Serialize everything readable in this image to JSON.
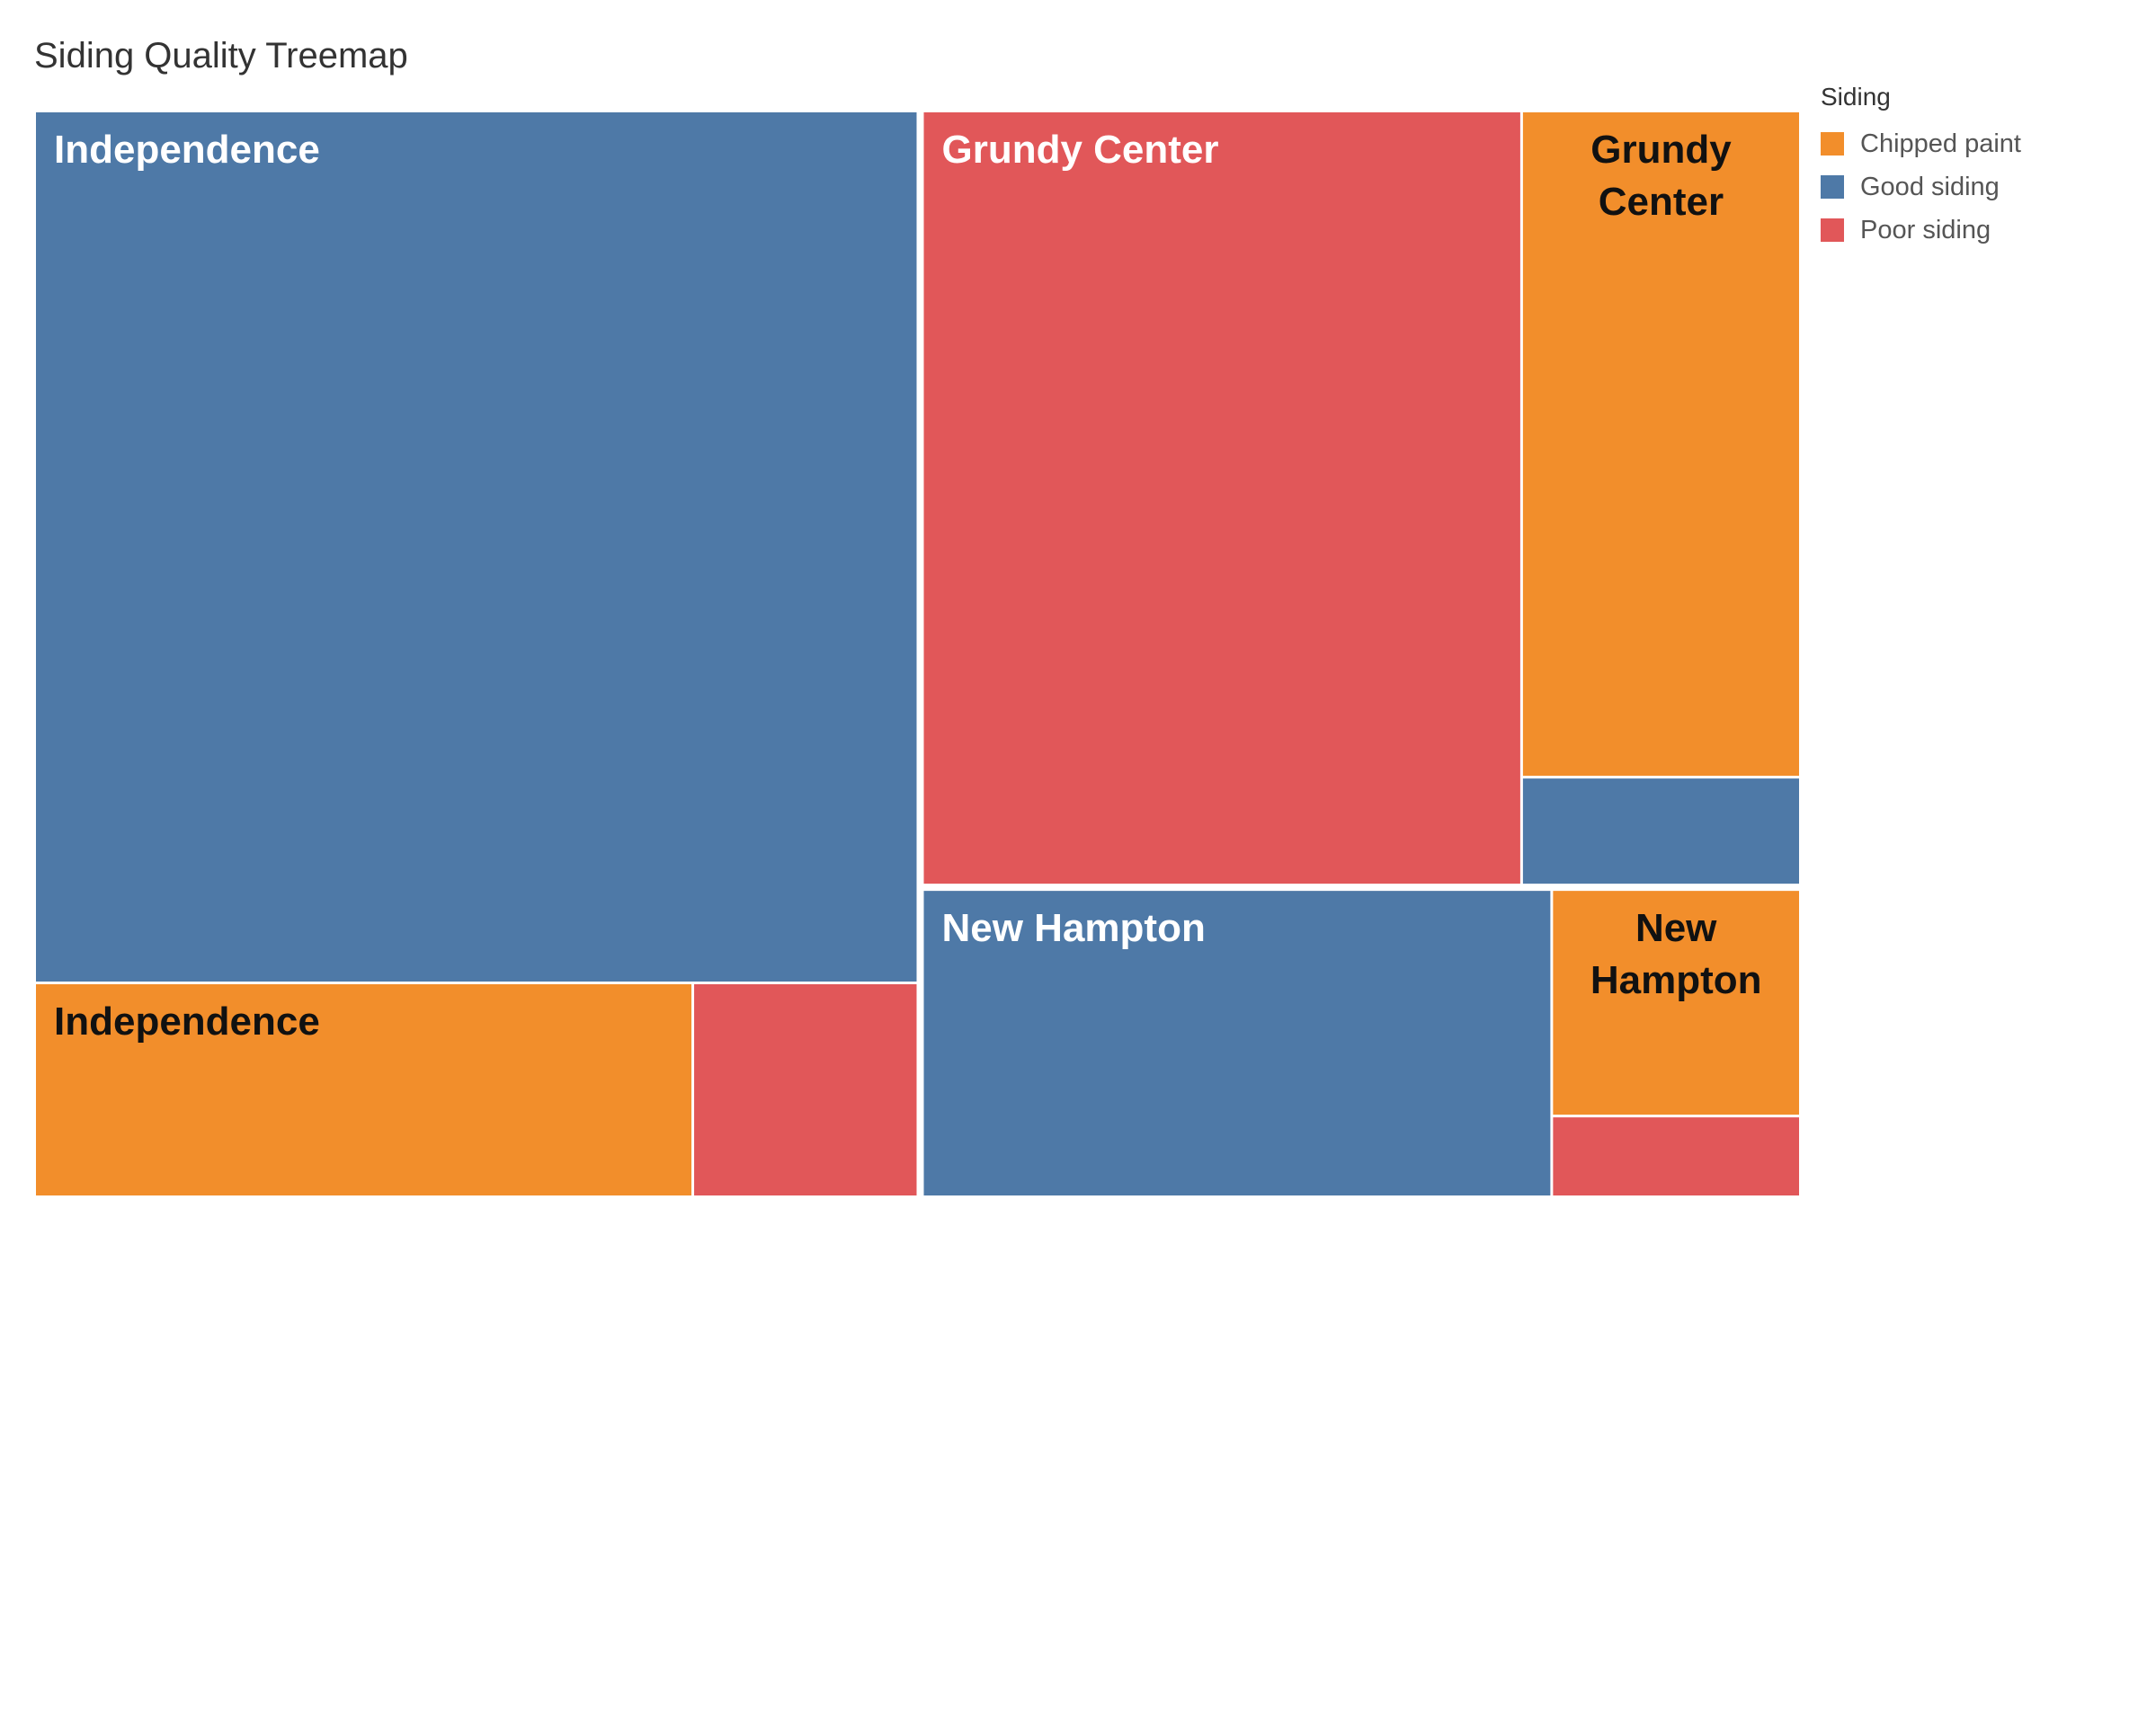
{
  "chart_data": {
    "type": "treemap",
    "title": "Siding Quality Treemap",
    "legend": {
      "title": "Siding",
      "placement": "top-right",
      "items": [
        {
          "name": "Chipped paint",
          "color": "#F28E2B"
        },
        {
          "name": "Good siding",
          "color": "#4E79A7"
        },
        {
          "name": "Poor siding",
          "color": "#E15759"
        }
      ]
    },
    "groups": [
      {
        "name": "Independence",
        "cells": [
          {
            "category": "Good siding",
            "value": 389,
            "label": "Independence"
          },
          {
            "category": "Chipped paint",
            "value": 71,
            "label": "Independence"
          },
          {
            "category": "Poor siding",
            "value": 24,
            "label": ""
          }
        ]
      },
      {
        "name": "Grundy Center",
        "cells": [
          {
            "category": "Poor siding",
            "value": 237,
            "label": "Grundy Center"
          },
          {
            "category": "Chipped paint",
            "value": 95,
            "label": "Grundy Center"
          },
          {
            "category": "Good siding",
            "value": 15,
            "label": ""
          }
        ]
      },
      {
        "name": "New Hampton",
        "cells": [
          {
            "category": "Good siding",
            "value": 99,
            "label": "New Hampton"
          },
          {
            "category": "Chipped paint",
            "value": 29,
            "label": "New Hampton"
          },
          {
            "category": "Poor siding",
            "value": 10,
            "label": ""
          }
        ]
      }
    ]
  }
}
